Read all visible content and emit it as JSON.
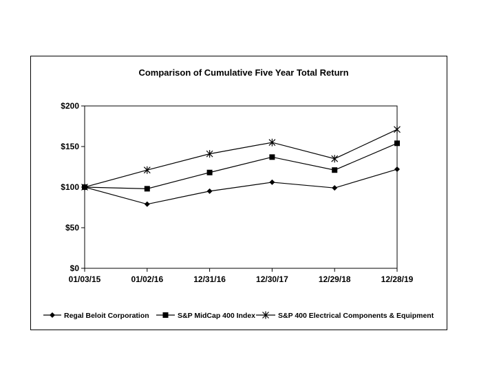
{
  "chart_data": {
    "type": "line",
    "title": "Comparison of Cumulative Five Year Total Return",
    "xlabel": "",
    "ylabel": "",
    "categories": [
      "01/03/15",
      "01/02/16",
      "12/31/16",
      "12/30/17",
      "12/29/18",
      "12/28/19"
    ],
    "ylim": [
      0,
      200
    ],
    "yticks": [
      0,
      50,
      100,
      150,
      200
    ],
    "ytick_labels": [
      "$0",
      "$50",
      "$100",
      "$150",
      "$200"
    ],
    "legend_position": "bottom",
    "series": [
      {
        "name": "Regal Beloit Corporation",
        "marker": "diamond",
        "values": [
          100,
          79,
          95,
          106,
          99,
          122
        ]
      },
      {
        "name": "S&P MidCap 400 Index",
        "marker": "square",
        "values": [
          100,
          98,
          118,
          137,
          121,
          154
        ]
      },
      {
        "name": "S&P 400 Electrical Components & Equipment",
        "marker": "star",
        "values": [
          100,
          121,
          141,
          155,
          135,
          171
        ]
      }
    ]
  }
}
